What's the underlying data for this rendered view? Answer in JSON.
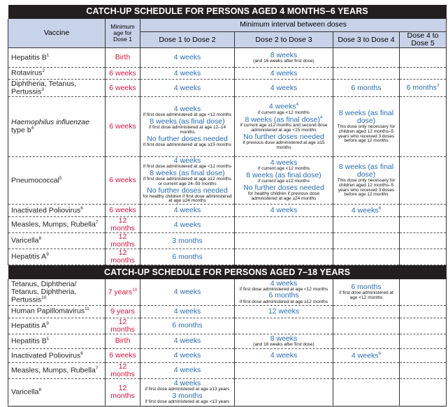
{
  "headers": {
    "vaccine": "Vaccine",
    "min_age": "Minimum age for Dose 1",
    "interval": "Minimum interval between doses",
    "doses": [
      "Dose 1 to Dose 2",
      "Dose 2 to Dose 3",
      "Dose 3 to Dose 4",
      "Dose 4 to Dose 5"
    ]
  },
  "sections": [
    {
      "title": "CATCH-UP SCHEDULE FOR PERSONS AGED 4 MONTHS–6 YEARS",
      "rows": [
        {
          "vaccine": "Hepatitis B",
          "sup": "1",
          "age": "Birth",
          "h": 28,
          "cells": [
            [
              {
                "t": "4 weeks",
                "k": "main"
              }
            ],
            [
              {
                "t": "8 weeks",
                "k": "main"
              },
              {
                "t": "(and 16 weeks after first dose)",
                "k": "note"
              }
            ],
            [],
            []
          ]
        },
        {
          "vaccine": "Rotavirus",
          "sup": "2",
          "age": "6 weeks",
          "h": 17,
          "cells": [
            [
              {
                "t": "4 weeks",
                "k": "main"
              }
            ],
            [
              {
                "t": "4 weeks",
                "k": "main"
              }
            ],
            [],
            []
          ]
        },
        {
          "vaccine": "Diphtheria, Tetanus, Pertussis",
          "sup": "3",
          "age": "6 weeks",
          "h": 25,
          "cells": [
            [
              {
                "t": "4 weeks",
                "k": "main"
              }
            ],
            [
              {
                "t": "4 weeks",
                "k": "main"
              }
            ],
            [
              {
                "t": "6 months",
                "k": "main"
              }
            ],
            [
              {
                "t": "6 months",
                "k": "main",
                "s": "3"
              }
            ]
          ]
        },
        {
          "vaccine": "Haemophilus influenzae type b",
          "italic": "Haemophilus influenzae",
          "plain": " type b",
          "sup": "4",
          "age": "6 weeks",
          "h": 86,
          "cells": [
            [
              {
                "t": "4 weeks",
                "k": "main"
              },
              {
                "t": "if first dose administered at age <12 months",
                "k": "note"
              },
              {
                "t": "8 weeks (as final dose)",
                "k": "main"
              },
              {
                "t": "if first dose administered at age 12–14 months",
                "k": "note"
              },
              {
                "t": "No further doses needed",
                "k": "main"
              },
              {
                "t": "if first dose administered at age ≥15 months",
                "k": "note"
              }
            ],
            [
              {
                "t": "4 weeks",
                "k": "main",
                "s": "4"
              },
              {
                "t": "if current age <12 months",
                "k": "note"
              },
              {
                "t": "8 weeks (as final dose)",
                "k": "main",
                "s": "4"
              },
              {
                "t": "if current age ≥12 months and second dose administered at age <15 months",
                "k": "note"
              },
              {
                "t": "No further doses needed",
                "k": "main"
              },
              {
                "t": "if previous dose administered at age ≥15 months",
                "k": "note"
              }
            ],
            [
              {
                "t": "8 weeks (as final dose)",
                "k": "main"
              },
              {
                "t": "This dose only necessary for children aged 12 months–5 years who received 3 doses before age 12 months",
                "k": "note"
              }
            ],
            []
          ]
        },
        {
          "vaccine": "Pneumococcal",
          "sup": "5",
          "age": "6 weeks",
          "h": 63,
          "cells": [
            [
              {
                "t": "4 weeks",
                "k": "main"
              },
              {
                "t": "if first dose administered at age <12 months",
                "k": "note"
              },
              {
                "t": "8 weeks (as final dose)",
                "k": "main"
              },
              {
                "t": "if first dose administered at age ≥12 months or current age 24–59 months",
                "k": "note"
              },
              {
                "t": "No further doses needed",
                "k": "main"
              },
              {
                "t": "for healthy children if first dose administered at age ≥24 months",
                "k": "note"
              }
            ],
            [
              {
                "t": "4 weeks",
                "k": "main"
              },
              {
                "t": "if current age <12 months",
                "k": "note"
              },
              {
                "t": "8 weeks (as final dose)",
                "k": "main"
              },
              {
                "t": "if current age ≥12 months",
                "k": "note"
              },
              {
                "t": "No further doses needed",
                "k": "main"
              },
              {
                "t": "for healthy children if previous dose administered at age ≥24 months",
                "k": "note"
              }
            ],
            [
              {
                "t": "8 weeks (as final dose)",
                "k": "main"
              },
              {
                "t": "This dose only necessary for children aged 12 months–5 years who received 3 doses before age 12 months",
                "k": "note"
              }
            ],
            []
          ]
        },
        {
          "vaccine": "Inactivated Poliovirus",
          "sup": "6",
          "age": "6 weeks",
          "h": 18,
          "cells": [
            [
              {
                "t": "4 weeks",
                "k": "main"
              }
            ],
            [
              {
                "t": "4 weeks",
                "k": "main"
              }
            ],
            [
              {
                "t": "4 weeks",
                "k": "main",
                "s": "6"
              }
            ],
            []
          ]
        },
        {
          "vaccine": "Measles, Mumps, Rubella",
          "sup": "7",
          "age": "12 months",
          "h": 16,
          "cells": [
            [
              {
                "t": "4 weeks",
                "k": "main"
              }
            ],
            [],
            [],
            []
          ]
        },
        {
          "vaccine": "Varicella",
          "sup": "8",
          "age": "12 months",
          "h": 17,
          "cells": [
            [
              {
                "t": "3 months",
                "k": "main"
              }
            ],
            [],
            [],
            []
          ]
        },
        {
          "vaccine": "Hepatitis A",
          "sup": "9",
          "age": "12 months",
          "h": 17,
          "cells": [
            [
              {
                "t": "6 months",
                "k": "main"
              }
            ],
            [],
            [],
            []
          ]
        }
      ]
    },
    {
      "title": "CATCH-UP SCHEDULE FOR PERSONS AGED 7–18 YEARS",
      "rows": [
        {
          "vaccine": "Tetanus, Diphtheria/ Tetanus, Diphtheria, Pertussis",
          "sup": "10",
          "age": "7 years",
          "age_sup": "10",
          "h": 37,
          "cells": [
            [
              {
                "t": "4 weeks",
                "k": "main"
              }
            ],
            [
              {
                "t": "4 weeks",
                "k": "main"
              },
              {
                "t": "if first dose administered at age <12 months",
                "k": "note"
              },
              {
                "t": "6 months",
                "k": "main"
              },
              {
                "t": "if first dose administered at age ≥12 months",
                "k": "note"
              }
            ],
            [
              {
                "t": "6 months",
                "k": "main"
              },
              {
                "t": "if first dose administered at age <12 months",
                "k": "note"
              }
            ],
            []
          ]
        },
        {
          "vaccine": "Human Papillomavirus",
          "sup": "11",
          "age": "9 years",
          "h": 18,
          "cells": [
            [
              {
                "t": "4 weeks",
                "k": "main"
              }
            ],
            [
              {
                "t": "12 weeks",
                "k": "main"
              }
            ],
            [],
            []
          ]
        },
        {
          "vaccine": "Hepatitis A",
          "sup": "9",
          "age": "12 months",
          "h": 17,
          "cells": [
            [
              {
                "t": "6 months",
                "k": "main"
              }
            ],
            [],
            [],
            []
          ]
        },
        {
          "vaccine": "Hepatitis B",
          "sup": "1",
          "age": "Birth",
          "h": 21,
          "cells": [
            [
              {
                "t": "4 weeks",
                "k": "main"
              }
            ],
            [
              {
                "t": "8 weeks",
                "k": "main"
              },
              {
                "t": "(and 16 weeks after first dose)",
                "k": "note"
              }
            ],
            [],
            []
          ]
        },
        {
          "vaccine": "Inactivated Poliovirus",
          "sup": "6",
          "age": "6 weeks",
          "h": 20,
          "cells": [
            [
              {
                "t": "4 weeks",
                "k": "main"
              }
            ],
            [
              {
                "t": "4 weeks",
                "k": "main"
              }
            ],
            [
              {
                "t": "4 weeks",
                "k": "main",
                "s": "6"
              }
            ],
            []
          ]
        },
        {
          "vaccine": "Measles, Mumps, Rubella",
          "sup": "7",
          "age": "12 months",
          "h": 16,
          "cells": [
            [
              {
                "t": "4 weeks",
                "k": "main"
              }
            ],
            [],
            [],
            []
          ]
        },
        {
          "vaccine": "Varicella",
          "sup": "8",
          "age": "12 months",
          "h": 40,
          "cells": [
            [
              {
                "t": "4 weeks",
                "k": "main"
              },
              {
                "t": "if first dose administered at age ≥13 years",
                "k": "note"
              },
              {
                "t": "3 months",
                "k": "main"
              },
              {
                "t": "if first dose administered at age <13 years",
                "k": "note"
              }
            ],
            [],
            [],
            []
          ]
        }
      ]
    }
  ]
}
